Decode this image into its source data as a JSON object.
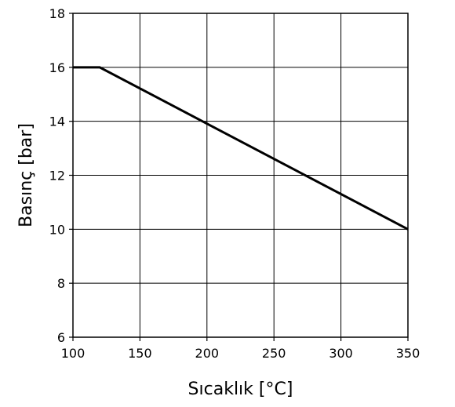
{
  "chart_data": {
    "type": "line",
    "title": "",
    "xlabel": "Sıcaklık [°C]",
    "ylabel": "Basınç [bar]",
    "xlim": [
      100,
      350
    ],
    "ylim": [
      6,
      18
    ],
    "xticks": [
      100,
      150,
      200,
      250,
      300,
      350
    ],
    "yticks": [
      6,
      8,
      10,
      12,
      14,
      16,
      18
    ],
    "grid": true,
    "legend": "none",
    "series": [
      {
        "color": "#000000",
        "x": [
          100,
          120,
          350
        ],
        "y": [
          16,
          16,
          10
        ]
      }
    ]
  }
}
